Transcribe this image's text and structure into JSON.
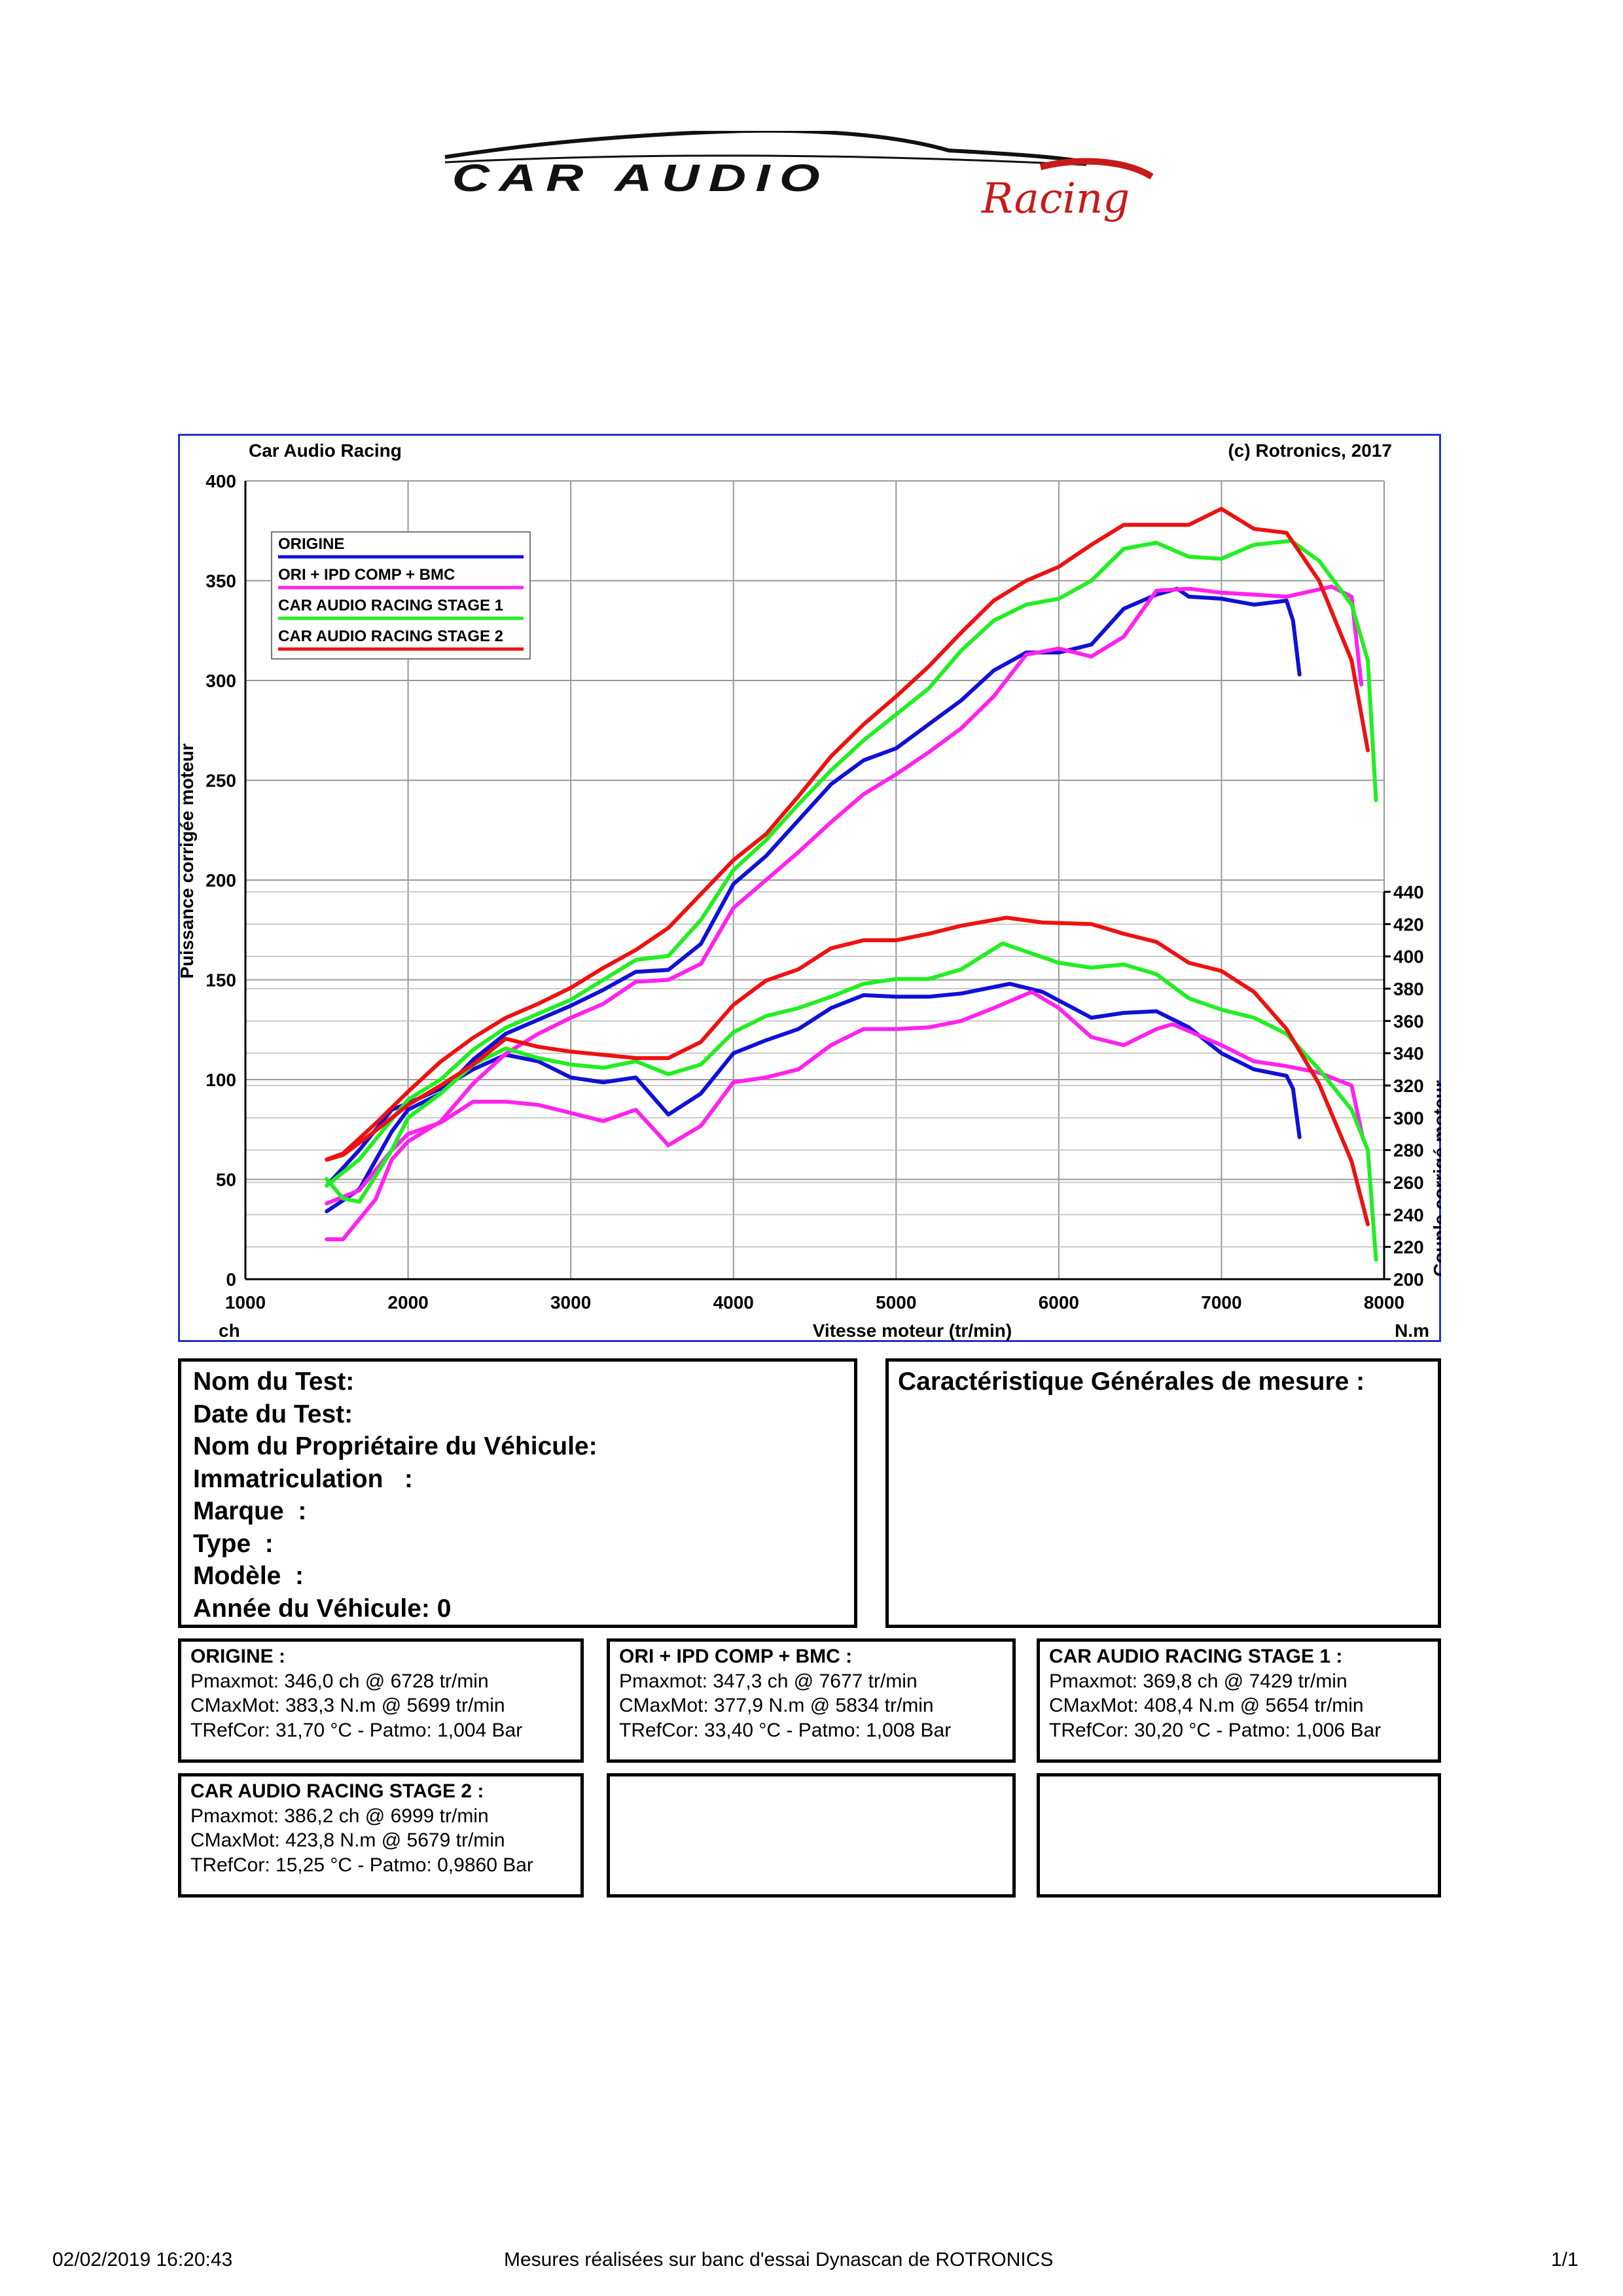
{
  "logo": {
    "brand": "CAR AUDIO",
    "script": "Racing"
  },
  "chart": {
    "header_left": "Car Audio Racing",
    "header_right": "(c) Rotronics, 2017",
    "xlabel": "Vitesse moteur (tr/min)",
    "ylabel_left": "Puissance corrigée moteur",
    "ylabel_right": "Couple corrigé moteur",
    "unit_left": "ch",
    "unit_right": "N.m"
  },
  "chart_data": {
    "type": "line",
    "xlabel": "Vitesse moteur (tr/min)",
    "ylabel": "Puissance corrigée moteur",
    "y2label": "Couple corrigé moteur",
    "xlim": [
      1000,
      8000
    ],
    "ylim": [
      0,
      400
    ],
    "y2lim": [
      200,
      440
    ],
    "x_ticks": [
      1000,
      2000,
      3000,
      4000,
      5000,
      6000,
      7000,
      8000
    ],
    "y_ticks": [
      0,
      50,
      100,
      150,
      200,
      250,
      300,
      350,
      400
    ],
    "y2_ticks": [
      200,
      220,
      240,
      260,
      280,
      300,
      320,
      340,
      360,
      380,
      400,
      420,
      440
    ],
    "grid": true,
    "legend_position": "top-left",
    "series": [
      {
        "name": "ORIGINE",
        "color": "#1010d8",
        "power": [
          [
            1500,
            34
          ],
          [
            1700,
            45
          ],
          [
            1900,
            74
          ],
          [
            2000,
            85
          ],
          [
            2200,
            93
          ],
          [
            2400,
            110
          ],
          [
            2600,
            123
          ],
          [
            2800,
            130
          ],
          [
            3000,
            137
          ],
          [
            3200,
            145
          ],
          [
            3400,
            154
          ],
          [
            3600,
            155
          ],
          [
            3800,
            168
          ],
          [
            4000,
            198
          ],
          [
            4200,
            212
          ],
          [
            4400,
            230
          ],
          [
            4600,
            248
          ],
          [
            4800,
            260
          ],
          [
            5000,
            266
          ],
          [
            5200,
            278
          ],
          [
            5400,
            290
          ],
          [
            5600,
            305
          ],
          [
            5800,
            314
          ],
          [
            6000,
            314
          ],
          [
            6200,
            318
          ],
          [
            6400,
            336
          ],
          [
            6600,
            343
          ],
          [
            6728,
            346
          ],
          [
            6800,
            342
          ],
          [
            7000,
            341
          ],
          [
            7200,
            338
          ],
          [
            7400,
            340
          ],
          [
            7440,
            330
          ],
          [
            7480,
            303
          ]
        ],
        "torque": [
          [
            1500,
            258
          ],
          [
            1700,
            280
          ],
          [
            1900,
            305
          ],
          [
            2000,
            309
          ],
          [
            2200,
            318
          ],
          [
            2400,
            330
          ],
          [
            2600,
            339
          ],
          [
            2800,
            335
          ],
          [
            3000,
            325
          ],
          [
            3200,
            322
          ],
          [
            3400,
            325
          ],
          [
            3600,
            302
          ],
          [
            3800,
            315
          ],
          [
            4000,
            340
          ],
          [
            4200,
            348
          ],
          [
            4400,
            355
          ],
          [
            4600,
            368
          ],
          [
            4800,
            376
          ],
          [
            5000,
            375
          ],
          [
            5200,
            375
          ],
          [
            5400,
            377
          ],
          [
            5600,
            381
          ],
          [
            5699,
            383
          ],
          [
            5900,
            378
          ],
          [
            6200,
            362
          ],
          [
            6400,
            365
          ],
          [
            6600,
            366
          ],
          [
            6800,
            356
          ],
          [
            7000,
            340
          ],
          [
            7200,
            330
          ],
          [
            7400,
            326
          ],
          [
            7440,
            318
          ],
          [
            7480,
            288
          ]
        ]
      },
      {
        "name": "ORI + IPD COMP + BMC",
        "color": "#ff22ee",
        "power": [
          [
            1500,
            20
          ],
          [
            1600,
            20
          ],
          [
            1800,
            40
          ],
          [
            1900,
            60
          ],
          [
            2000,
            69
          ],
          [
            2200,
            79
          ],
          [
            2400,
            98
          ],
          [
            2600,
            113
          ],
          [
            2800,
            123
          ],
          [
            3000,
            131
          ],
          [
            3200,
            138
          ],
          [
            3400,
            149
          ],
          [
            3600,
            150
          ],
          [
            3800,
            158
          ],
          [
            4000,
            186
          ],
          [
            4200,
            200
          ],
          [
            4400,
            214
          ],
          [
            4600,
            229
          ],
          [
            4800,
            243
          ],
          [
            5000,
            253
          ],
          [
            5200,
            264
          ],
          [
            5400,
            276
          ],
          [
            5600,
            292
          ],
          [
            5800,
            313
          ],
          [
            6000,
            316
          ],
          [
            6200,
            312
          ],
          [
            6400,
            322
          ],
          [
            6600,
            345
          ],
          [
            6800,
            346
          ],
          [
            7000,
            344
          ],
          [
            7200,
            343
          ],
          [
            7400,
            342
          ],
          [
            7677,
            347
          ],
          [
            7800,
            342
          ],
          [
            7860,
            298
          ]
        ],
        "torque": [
          [
            1500,
            247
          ],
          [
            1700,
            255
          ],
          [
            1900,
            280
          ],
          [
            2000,
            290
          ],
          [
            2200,
            297
          ],
          [
            2400,
            310
          ],
          [
            2600,
            310
          ],
          [
            2800,
            308
          ],
          [
            3000,
            303
          ],
          [
            3200,
            298
          ],
          [
            3400,
            305
          ],
          [
            3600,
            283
          ],
          [
            3800,
            295
          ],
          [
            4000,
            322
          ],
          [
            4200,
            325
          ],
          [
            4400,
            330
          ],
          [
            4600,
            345
          ],
          [
            4800,
            355
          ],
          [
            5000,
            355
          ],
          [
            5200,
            356
          ],
          [
            5400,
            360
          ],
          [
            5600,
            368
          ],
          [
            5834,
            378
          ],
          [
            6000,
            368
          ],
          [
            6200,
            350
          ],
          [
            6400,
            345
          ],
          [
            6600,
            355
          ],
          [
            6700,
            358
          ],
          [
            7000,
            345
          ],
          [
            7200,
            335
          ],
          [
            7400,
            332
          ],
          [
            7600,
            328
          ],
          [
            7800,
            320
          ],
          [
            7870,
            287
          ]
        ]
      },
      {
        "name": "CAR AUDIO RACING STAGE 1",
        "color": "#22ee22",
        "power": [
          [
            1500,
            47
          ],
          [
            1700,
            60
          ],
          [
            1900,
            80
          ],
          [
            2000,
            90
          ],
          [
            2200,
            100
          ],
          [
            2400,
            115
          ],
          [
            2600,
            126
          ],
          [
            2800,
            133
          ],
          [
            3000,
            140
          ],
          [
            3200,
            150
          ],
          [
            3400,
            160
          ],
          [
            3600,
            162
          ],
          [
            3800,
            180
          ],
          [
            4000,
            205
          ],
          [
            4200,
            220
          ],
          [
            4400,
            238
          ],
          [
            4600,
            255
          ],
          [
            4800,
            270
          ],
          [
            5000,
            283
          ],
          [
            5200,
            296
          ],
          [
            5400,
            315
          ],
          [
            5600,
            330
          ],
          [
            5800,
            338
          ],
          [
            6000,
            341
          ],
          [
            6200,
            350
          ],
          [
            6400,
            366
          ],
          [
            6600,
            369
          ],
          [
            6800,
            362
          ],
          [
            7000,
            361
          ],
          [
            7200,
            368
          ],
          [
            7429,
            370
          ],
          [
            7600,
            360
          ],
          [
            7800,
            338
          ],
          [
            7900,
            310
          ],
          [
            7950,
            240
          ]
        ],
        "torque": [
          [
            1500,
            262
          ],
          [
            1600,
            250
          ],
          [
            1700,
            248
          ],
          [
            1900,
            280
          ],
          [
            2000,
            300
          ],
          [
            2200,
            315
          ],
          [
            2400,
            333
          ],
          [
            2600,
            343
          ],
          [
            2800,
            337
          ],
          [
            3000,
            333
          ],
          [
            3200,
            331
          ],
          [
            3400,
            335
          ],
          [
            3600,
            327
          ],
          [
            3800,
            333
          ],
          [
            4000,
            353
          ],
          [
            4200,
            363
          ],
          [
            4400,
            368
          ],
          [
            4600,
            375
          ],
          [
            4800,
            383
          ],
          [
            5000,
            386
          ],
          [
            5200,
            386
          ],
          [
            5400,
            392
          ],
          [
            5654,
            408
          ],
          [
            5800,
            403
          ],
          [
            6000,
            396
          ],
          [
            6200,
            393
          ],
          [
            6400,
            395
          ],
          [
            6600,
            389
          ],
          [
            6800,
            374
          ],
          [
            7000,
            367
          ],
          [
            7200,
            362
          ],
          [
            7400,
            352
          ],
          [
            7600,
            330
          ],
          [
            7800,
            305
          ],
          [
            7900,
            280
          ],
          [
            7950,
            212
          ]
        ]
      },
      {
        "name": "CAR AUDIO RACING STAGE 2",
        "color": "#ee1111",
        "power": [
          [
            1500,
            60
          ],
          [
            1600,
            63
          ],
          [
            1800,
            78
          ],
          [
            2000,
            94
          ],
          [
            2200,
            109
          ],
          [
            2400,
            121
          ],
          [
            2600,
            131
          ],
          [
            2800,
            138
          ],
          [
            3000,
            146
          ],
          [
            3200,
            156
          ],
          [
            3400,
            165
          ],
          [
            3600,
            176
          ],
          [
            3800,
            193
          ],
          [
            4000,
            210
          ],
          [
            4200,
            223
          ],
          [
            4400,
            242
          ],
          [
            4600,
            262
          ],
          [
            4800,
            278
          ],
          [
            5000,
            292
          ],
          [
            5200,
            307
          ],
          [
            5400,
            324
          ],
          [
            5600,
            340
          ],
          [
            5800,
            350
          ],
          [
            6000,
            357
          ],
          [
            6200,
            368
          ],
          [
            6400,
            378
          ],
          [
            6600,
            378
          ],
          [
            6800,
            378
          ],
          [
            6999,
            386
          ],
          [
            7200,
            376
          ],
          [
            7400,
            374
          ],
          [
            7600,
            350
          ],
          [
            7800,
            310
          ],
          [
            7900,
            265
          ]
        ],
        "torque": [
          [
            1500,
            274
          ],
          [
            1600,
            277
          ],
          [
            1800,
            292
          ],
          [
            2000,
            308
          ],
          [
            2200,
            320
          ],
          [
            2400,
            333
          ],
          [
            2600,
            349
          ],
          [
            2800,
            344
          ],
          [
            3000,
            341
          ],
          [
            3200,
            339
          ],
          [
            3400,
            337
          ],
          [
            3600,
            337
          ],
          [
            3800,
            347
          ],
          [
            4000,
            370
          ],
          [
            4200,
            385
          ],
          [
            4400,
            392
          ],
          [
            4600,
            405
          ],
          [
            4800,
            410
          ],
          [
            5000,
            410
          ],
          [
            5200,
            414
          ],
          [
            5400,
            419
          ],
          [
            5679,
            424
          ],
          [
            5900,
            421
          ],
          [
            6200,
            420
          ],
          [
            6400,
            414
          ],
          [
            6600,
            409
          ],
          [
            6800,
            396
          ],
          [
            7000,
            391
          ],
          [
            7200,
            378
          ],
          [
            7400,
            355
          ],
          [
            7600,
            321
          ],
          [
            7800,
            273
          ],
          [
            7900,
            234
          ]
        ]
      }
    ]
  },
  "info": {
    "test_name": "Nom du Test:",
    "test_date": "Date du Test:",
    "owner": "Nom du Propriétaire du Véhicule:",
    "registration": "Immatriculation   :",
    "brand": "Marque  :",
    "type": "Type  :",
    "model": "Modèle  :",
    "year": "Année du Véhicule: 0",
    "general_title": "Caractéristique Générales de mesure :"
  },
  "results": [
    {
      "title": "ORIGINE :",
      "pmax": "Pmaxmot: 346,0 ch @ 6728 tr/min",
      "cmax": "CMaxMot: 383,3 N.m @ 5699 tr/min",
      "tref": "TRefCor: 31,70 °C - Patmo: 1,004 Bar"
    },
    {
      "title": "ORI + IPD COMP + BMC :",
      "pmax": "Pmaxmot: 347,3 ch @ 7677 tr/min",
      "cmax": "CMaxMot: 377,9 N.m @ 5834 tr/min",
      "tref": "TRefCor: 33,40 °C - Patmo: 1,008 Bar"
    },
    {
      "title": "CAR AUDIO RACING STAGE 1 :",
      "pmax": "Pmaxmot: 369,8 ch @ 7429 tr/min",
      "cmax": "CMaxMot: 408,4 N.m @ 5654 tr/min",
      "tref": "TRefCor: 30,20 °C - Patmo: 1,006 Bar"
    },
    {
      "title": "CAR AUDIO RACING STAGE 2 :",
      "pmax": "Pmaxmot: 386,2 ch @ 6999 tr/min",
      "cmax": "CMaxMot: 423,8 N.m @ 5679 tr/min",
      "tref": "TRefCor: 15,25 °C - Patmo: 0,9860 Bar"
    }
  ],
  "footer": {
    "datetime": "02/02/2019 16:20:43",
    "center": "Mesures réalisées sur banc d'essai Dynascan de ROTRONICS",
    "page": "1/1"
  }
}
